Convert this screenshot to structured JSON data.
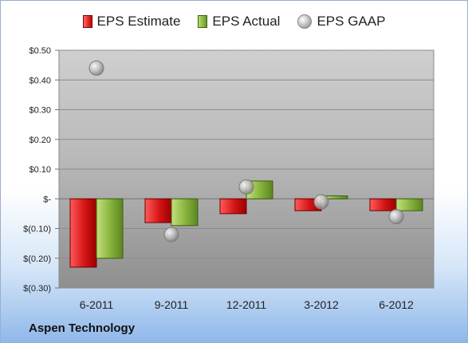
{
  "chart_data": {
    "type": "bar",
    "categories": [
      "6-2011",
      "9-2011",
      "12-2011",
      "3-2012",
      "6-2012"
    ],
    "series": [
      {
        "name": "EPS Estimate",
        "type": "bar",
        "values": [
          -0.23,
          -0.08,
          -0.05,
          -0.04,
          -0.04
        ]
      },
      {
        "name": "EPS Actual",
        "type": "bar",
        "values": [
          -0.2,
          -0.09,
          0.06,
          0.01,
          -0.04
        ]
      },
      {
        "name": "EPS GAAP",
        "type": "scatter",
        "values": [
          0.44,
          -0.12,
          0.04,
          -0.01,
          -0.06
        ]
      }
    ],
    "title": "",
    "xlabel": "",
    "ylabel": "",
    "ylim": [
      -0.3,
      0.5
    ],
    "yticks": [
      {
        "value": 0.5,
        "label": "$0.50"
      },
      {
        "value": 0.4,
        "label": "$0.40"
      },
      {
        "value": 0.3,
        "label": "$0.30"
      },
      {
        "value": 0.2,
        "label": "$0.20"
      },
      {
        "value": 0.1,
        "label": "$0.10"
      },
      {
        "value": 0.0,
        "label": "$-"
      },
      {
        "value": -0.1,
        "label": "$(0.10)"
      },
      {
        "value": -0.2,
        "label": "$(0.20)"
      },
      {
        "value": -0.3,
        "label": "$(0.30)"
      }
    ],
    "grid": true,
    "legend": "top-center",
    "colors": {
      "estimate": "#c00000",
      "actual": "#76a22e",
      "gaap": "#a6a6a6"
    }
  },
  "company": "Aspen Technology"
}
